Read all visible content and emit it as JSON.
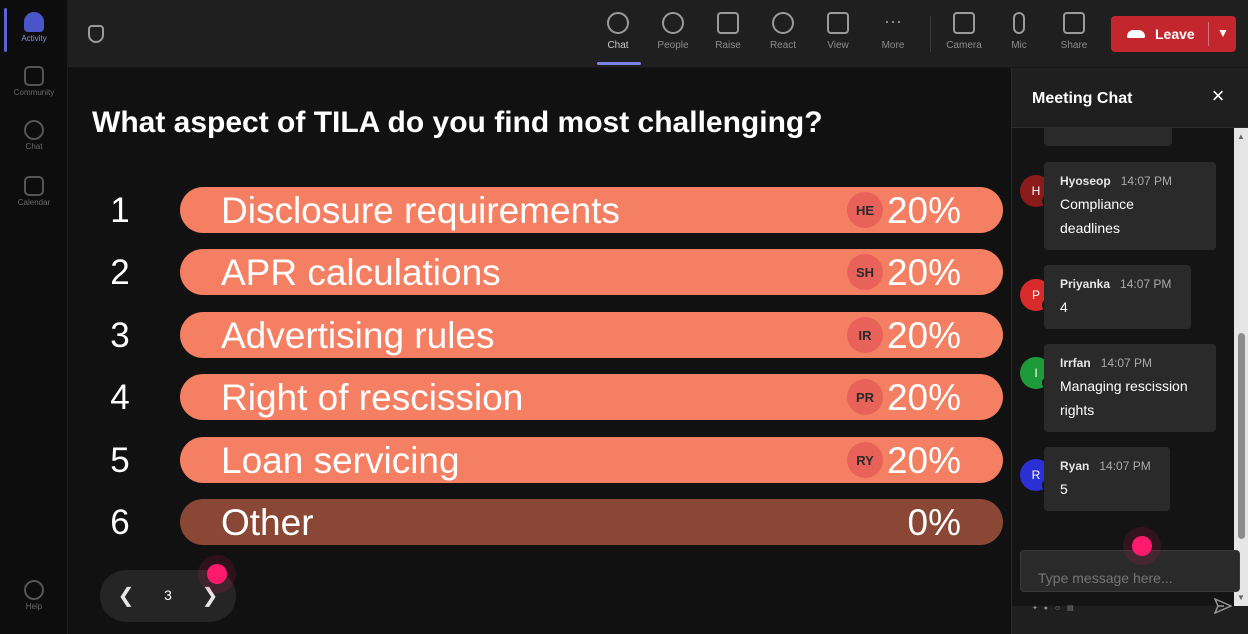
{
  "rail": {
    "items": [
      {
        "label": "Activity",
        "icon": "bell-icon"
      },
      {
        "label": "Community",
        "icon": "community-icon"
      },
      {
        "label": "Chat",
        "icon": "chat-icon"
      },
      {
        "label": "Calendar",
        "icon": "calendar-icon"
      },
      {
        "label": "Help",
        "icon": "help-icon"
      }
    ]
  },
  "toolbar": {
    "buttons": [
      {
        "label": "Chat",
        "icon": "chat-icon"
      },
      {
        "label": "People",
        "icon": "people-icon"
      },
      {
        "label": "Raise",
        "icon": "raise-hand-icon"
      },
      {
        "label": "React",
        "icon": "react-icon"
      },
      {
        "label": "View",
        "icon": "view-icon"
      },
      {
        "label": "More",
        "icon": "more-icon"
      },
      {
        "label": "Camera",
        "icon": "camera-off-icon"
      },
      {
        "label": "Mic",
        "icon": "mic-icon"
      },
      {
        "label": "Share",
        "icon": "share-icon"
      }
    ],
    "leave_label": "Leave",
    "leave_color": "#c4262e"
  },
  "poll": {
    "question": "What aspect of TILA do you find most challenging?",
    "options": [
      {
        "num": "1",
        "label": "Disclosure requirements",
        "badge": "HE",
        "percent": "20%"
      },
      {
        "num": "2",
        "label": "APR calculations",
        "badge": "SH",
        "percent": "20%"
      },
      {
        "num": "3",
        "label": "Advertising rules",
        "badge": "IR",
        "percent": "20%"
      },
      {
        "num": "4",
        "label": "Right of rescission",
        "badge": "PR",
        "percent": "20%"
      },
      {
        "num": "5",
        "label": "Loan servicing",
        "badge": "RY",
        "percent": "20%"
      },
      {
        "num": "6",
        "label": "Other",
        "badge": "",
        "percent": "0%"
      }
    ],
    "bar_color": "#f47f62",
    "bar_color_empty": "#8a4736"
  },
  "pager": {
    "page": "3"
  },
  "chat": {
    "title": "Meeting Chat",
    "messages": [
      {
        "initial": "H",
        "name": "Hyoseop",
        "time": "14:07 PM",
        "lines": [
          "Compliance",
          "deadlines"
        ],
        "color": "#8b1a1a"
      },
      {
        "initial": "P",
        "name": "Priyanka",
        "time": "14:07 PM",
        "lines": [
          "4"
        ],
        "color": "#d92b2b"
      },
      {
        "initial": "I",
        "name": "Irrfan",
        "time": "14:07 PM",
        "lines": [
          "Managing rescission",
          "rights"
        ],
        "color": "#1f9a3a"
      },
      {
        "initial": "R",
        "name": "Ryan",
        "time": "14:07 PM",
        "lines": [
          "5"
        ],
        "color": "#2b2fd6"
      }
    ],
    "input_placeholder": "Type message here..."
  }
}
